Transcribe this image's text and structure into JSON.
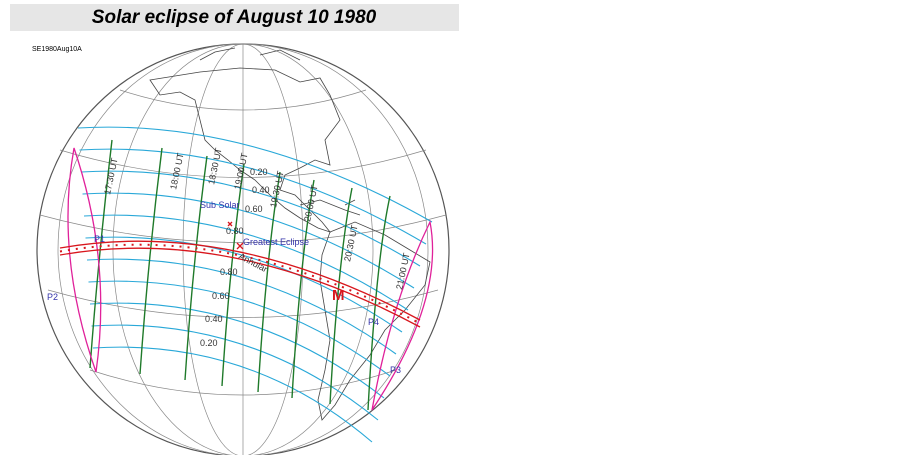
{
  "title": "Solar eclipse of August 10 1980",
  "code": "SE1980Aug10A",
  "time_labels": [
    "17:30 UT",
    "18:00 UT",
    "18:30 UT",
    "19:00 UT",
    "19:30 UT",
    "20:00 UT",
    "20:30 UT",
    "21:00 UT"
  ],
  "magnitude_labels_upper": [
    "0.20",
    "0.40",
    "0.60",
    "0.80"
  ],
  "magnitude_labels_lower": [
    "0.80",
    "0.60",
    "0.40",
    "0.20"
  ],
  "sub_solar": "Sub Solar",
  "greatest_eclipse": "Greatest Eclipse",
  "annular": "Annular",
  "mid_marker": "M",
  "contacts": [
    "P1",
    "P2",
    "P3",
    "P4"
  ]
}
